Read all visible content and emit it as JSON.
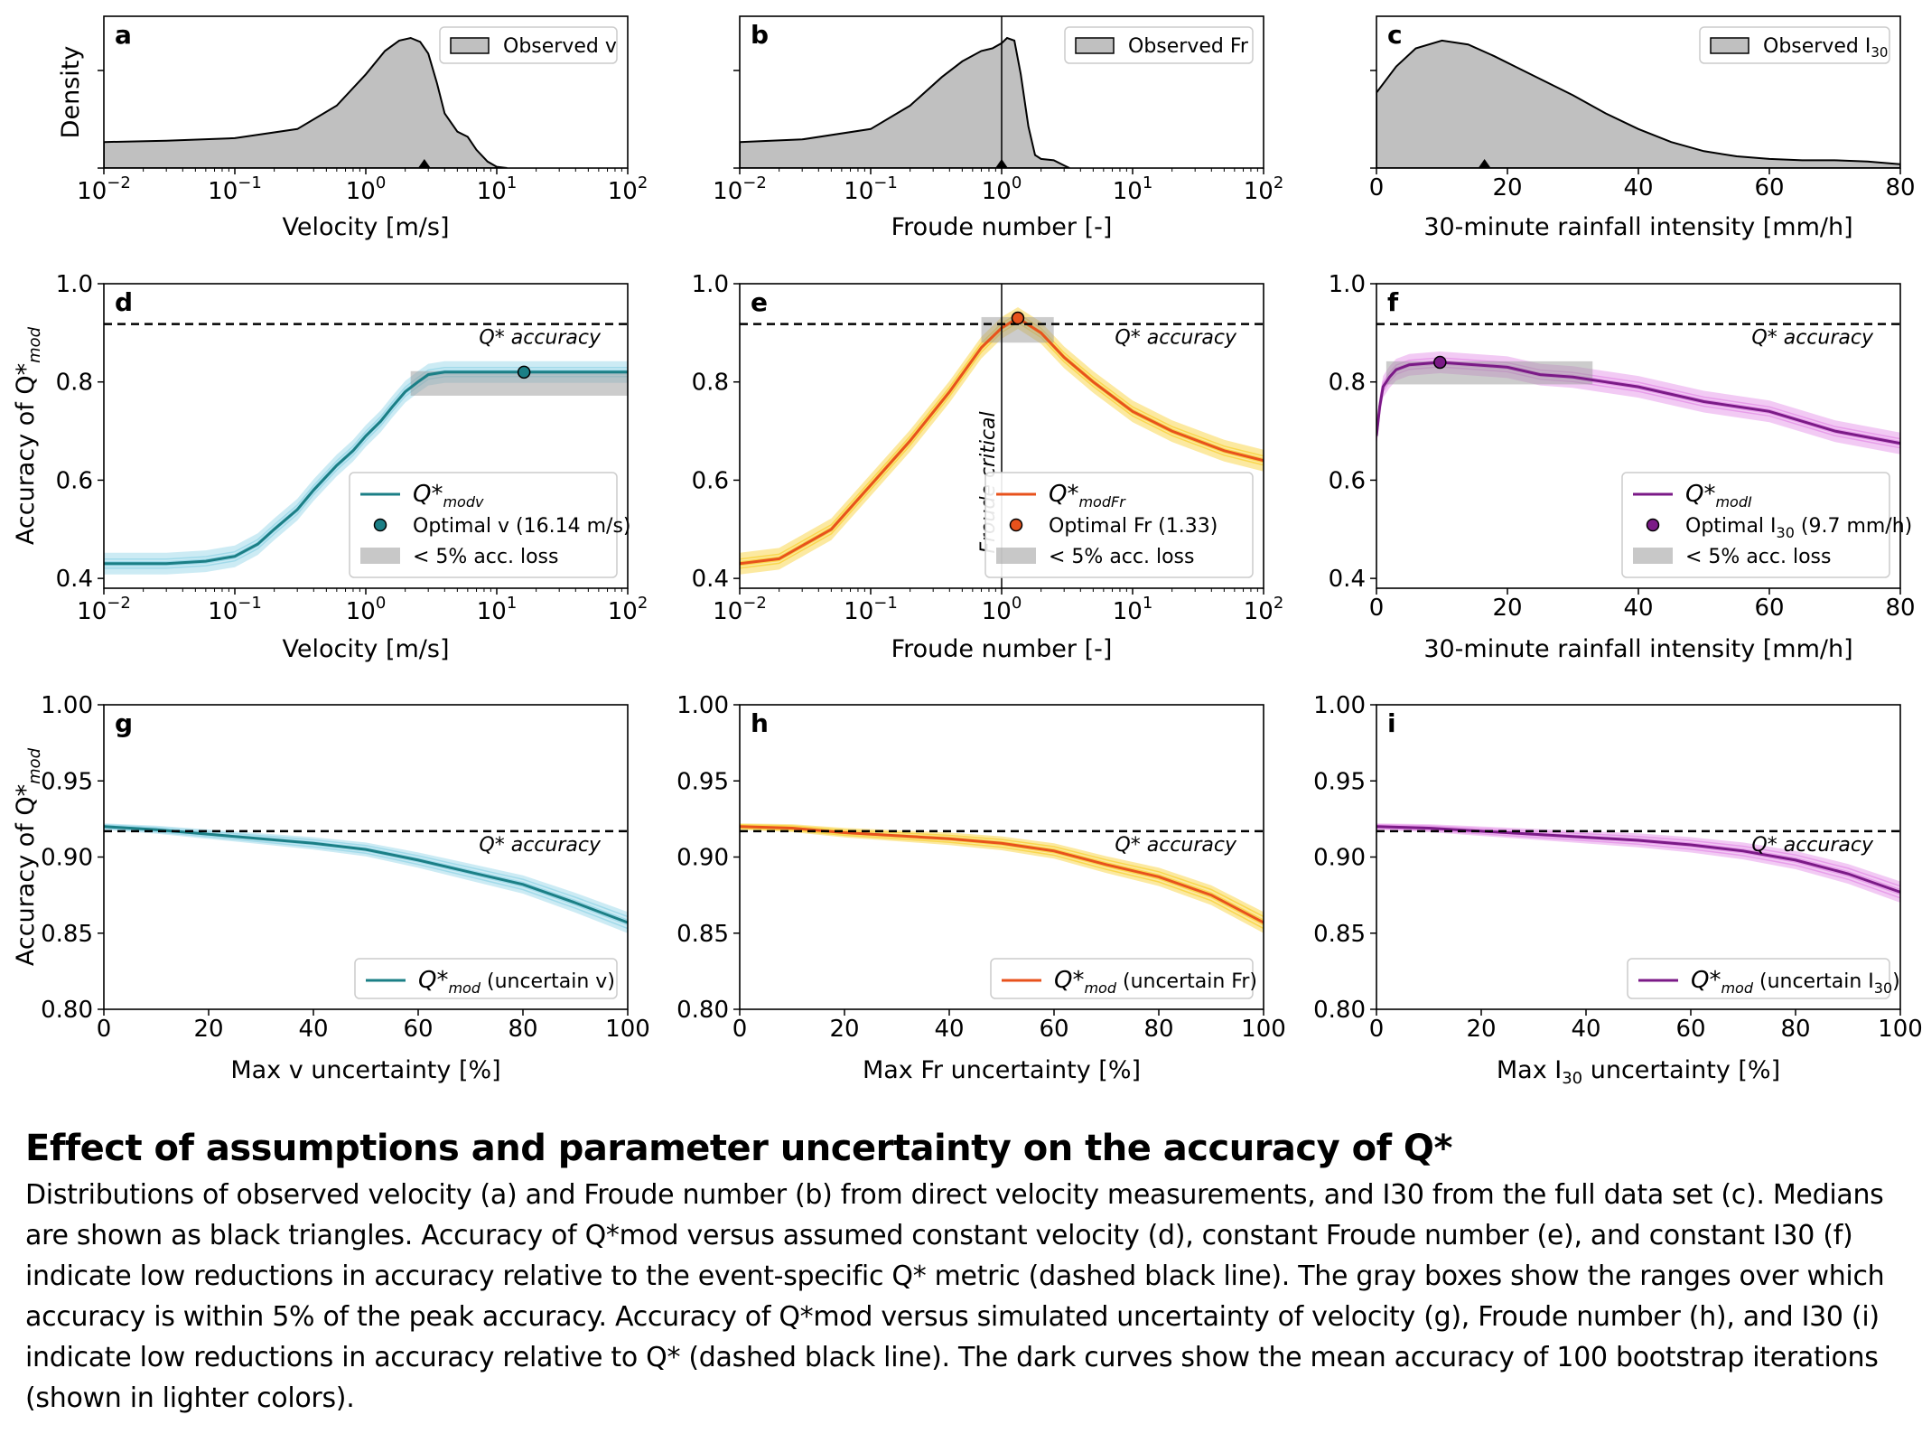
{
  "caption": {
    "title": "Effect of assumptions and parameter uncertainty on the accuracy of Q*",
    "body": "Distributions of observed velocity (a) and Froude number (b) from direct velocity measurements, and I30 from the full data set (c). Medians are shown as black triangles. Accuracy of Q*mod versus assumed constant velocity (d), constant Froude number (e), and constant I30 (f) indicate low reductions in accuracy relative to the event-specific Q* metric (dashed black line). The gray boxes show the ranges over which accuracy is within 5% of the peak accuracy. Accuracy of Q*mod versus simulated uncertainty of velocity (g), Froude number (h), and I30 (i) indicate low reductions in accuracy relative to Q* (dashed black line). The dark curves show the mean accuracy of 100 bootstrap iterations (shown in lighter colors)."
  },
  "colors": {
    "teal": "#1b7f86",
    "teal_light": "#8ed3e6",
    "orange": "#e8521c",
    "orange_light": "#f8cf2c",
    "purple": "#7b1a87",
    "purple_light": "#e38ae6",
    "density_fill": "#c0c0c0",
    "box_fill": "#9a9a9a"
  },
  "chart_data": [
    {
      "panel": "a",
      "type": "area",
      "xscale": "log",
      "xlim": [
        0.01,
        100
      ],
      "xticks": [
        {
          "v": 0.01,
          "b": "10",
          "e": "−2"
        },
        {
          "v": 0.1,
          "b": "10",
          "e": "−1"
        },
        {
          "v": 1,
          "b": "10",
          "e": "0"
        },
        {
          "v": 10,
          "b": "10",
          "e": "1"
        },
        {
          "v": 100,
          "b": "10",
          "e": "2"
        }
      ],
      "xlabel": "Velocity [m/s]",
      "ylabel": "Density",
      "legend": "Observed v",
      "median": 2.8,
      "x": [
        0.01,
        0.03,
        0.1,
        0.3,
        0.6,
        1.0,
        1.4,
        1.8,
        2.2,
        2.6,
        3.0,
        3.5,
        4.0,
        5.0,
        6.0,
        7.0,
        8.5,
        10.0,
        12.0
      ],
      "y": [
        0.2,
        0.21,
        0.23,
        0.3,
        0.48,
        0.72,
        0.9,
        0.98,
        1.0,
        0.97,
        0.88,
        0.65,
        0.42,
        0.28,
        0.24,
        0.14,
        0.05,
        0.01,
        0.0
      ]
    },
    {
      "panel": "b",
      "type": "area",
      "xscale": "log",
      "xlim": [
        0.01,
        100
      ],
      "xticks": [
        {
          "v": 0.01,
          "b": "10",
          "e": "−2"
        },
        {
          "v": 0.1,
          "b": "10",
          "e": "−1"
        },
        {
          "v": 1,
          "b": "10",
          "e": "0"
        },
        {
          "v": 10,
          "b": "10",
          "e": "1"
        },
        {
          "v": 100,
          "b": "10",
          "e": "2"
        }
      ],
      "xlabel": "Froude number [-]",
      "ylabel": "",
      "legend": "Observed Fr",
      "median": 1.0,
      "vline": 1.0,
      "x": [
        0.01,
        0.03,
        0.1,
        0.2,
        0.35,
        0.5,
        0.7,
        0.85,
        1.0,
        1.1,
        1.25,
        1.4,
        1.6,
        1.8,
        2.0,
        2.5,
        3.0,
        3.3
      ],
      "y": [
        0.2,
        0.22,
        0.3,
        0.48,
        0.7,
        0.82,
        0.9,
        0.92,
        0.96,
        1.0,
        0.98,
        0.72,
        0.32,
        0.1,
        0.07,
        0.06,
        0.02,
        0.0
      ]
    },
    {
      "panel": "c",
      "type": "area",
      "xscale": "linear",
      "xlim": [
        0,
        80
      ],
      "xticks": [
        {
          "v": 0,
          "t": "0"
        },
        {
          "v": 20,
          "t": "20"
        },
        {
          "v": 40,
          "t": "40"
        },
        {
          "v": 60,
          "t": "60"
        },
        {
          "v": 80,
          "t": "80"
        }
      ],
      "xlabel": "30-minute rainfall intensity [mm/h]",
      "ylabel": "",
      "legend": "Observed I",
      "legend_sub": "30",
      "median": 16.5,
      "x": [
        0,
        3,
        6,
        10,
        14,
        18,
        22,
        26,
        30,
        35,
        40,
        45,
        50,
        55,
        60,
        65,
        70,
        75,
        80
      ],
      "y": [
        0.58,
        0.78,
        0.92,
        0.98,
        0.95,
        0.86,
        0.76,
        0.66,
        0.56,
        0.42,
        0.3,
        0.2,
        0.13,
        0.09,
        0.07,
        0.06,
        0.06,
        0.05,
        0.03
      ]
    },
    {
      "panel": "d",
      "type": "line",
      "xscale": "log",
      "xlim": [
        0.01,
        100
      ],
      "ylim": [
        0.38,
        1.0
      ],
      "yticks": [
        0.4,
        0.6,
        0.8,
        1.0
      ],
      "ytick_labels": [
        "0.4",
        "0.6",
        "0.8",
        "1.0"
      ],
      "xticks": [
        {
          "v": 0.01,
          "b": "10",
          "e": "−2"
        },
        {
          "v": 0.1,
          "b": "10",
          "e": "−1"
        },
        {
          "v": 1,
          "b": "10",
          "e": "0"
        },
        {
          "v": 10,
          "b": "10",
          "e": "1"
        },
        {
          "v": 100,
          "b": "10",
          "e": "2"
        }
      ],
      "xlabel": "Velocity [m/s]",
      "ylabel_main": "Accuracy of Q*",
      "ylabel_sub": "mod",
      "ref_line": 0.918,
      "ref_label": "Q* accuracy",
      "box": {
        "x0": 2.2,
        "x1": 100,
        "y0": 0.772,
        "y1": 0.822
      },
      "optimal": {
        "x": 16.14,
        "y": 0.82
      },
      "legend": [
        {
          "main": "Q*",
          "sub": "modv",
          "after": ""
        },
        {
          "text": "Optimal v (16.14 m/s)"
        },
        {
          "text": "< 5% acc. loss"
        }
      ],
      "x": [
        0.01,
        0.03,
        0.06,
        0.1,
        0.15,
        0.2,
        0.3,
        0.4,
        0.6,
        0.8,
        1.0,
        1.3,
        1.6,
        2.0,
        2.5,
        3.0,
        4.0,
        6.0,
        10,
        16.14,
        30,
        100
      ],
      "y": [
        0.43,
        0.43,
        0.435,
        0.445,
        0.47,
        0.5,
        0.54,
        0.58,
        0.63,
        0.66,
        0.69,
        0.72,
        0.75,
        0.78,
        0.8,
        0.815,
        0.82,
        0.82,
        0.82,
        0.82,
        0.82,
        0.82
      ]
    },
    {
      "panel": "e",
      "type": "line",
      "xscale": "log",
      "xlim": [
        0.01,
        100
      ],
      "ylim": [
        0.38,
        1.0
      ],
      "yticks": [
        0.4,
        0.6,
        0.8,
        1.0
      ],
      "ytick_labels": [
        "0.4",
        "0.6",
        "0.8",
        "1.0"
      ],
      "xticks": [
        {
          "v": 0.01,
          "b": "10",
          "e": "−2"
        },
        {
          "v": 0.1,
          "b": "10",
          "e": "−1"
        },
        {
          "v": 1,
          "b": "10",
          "e": "0"
        },
        {
          "v": 10,
          "b": "10",
          "e": "1"
        },
        {
          "v": 100,
          "b": "10",
          "e": "2"
        }
      ],
      "xlabel": "Froude number [-]",
      "ylabel_main": "",
      "ylabel_sub": "",
      "ref_line": 0.918,
      "ref_label": "Q* accuracy",
      "vline": 1.0,
      "vline_label": "Froude critical",
      "box": {
        "x0": 0.7,
        "x1": 2.5,
        "y0": 0.88,
        "y1": 0.932
      },
      "optimal": {
        "x": 1.33,
        "y": 0.93
      },
      "legend": [
        {
          "main": "Q*",
          "sub": "modFr",
          "after": ""
        },
        {
          "text": "Optimal Fr (1.33)"
        },
        {
          "text": "< 5% acc. loss"
        }
      ],
      "x": [
        0.01,
        0.02,
        0.05,
        0.1,
        0.2,
        0.4,
        0.7,
        1.0,
        1.33,
        2.0,
        3.0,
        5.0,
        10,
        20,
        50,
        100
      ],
      "y": [
        0.43,
        0.44,
        0.5,
        0.59,
        0.68,
        0.78,
        0.87,
        0.91,
        0.93,
        0.9,
        0.85,
        0.8,
        0.74,
        0.7,
        0.66,
        0.64
      ]
    },
    {
      "panel": "f",
      "type": "line",
      "xscale": "linear",
      "xlim": [
        0,
        80
      ],
      "ylim": [
        0.38,
        1.0
      ],
      "yticks": [
        0.4,
        0.6,
        0.8,
        1.0
      ],
      "ytick_labels": [
        "0.4",
        "0.6",
        "0.8",
        "1.0"
      ],
      "xticks": [
        {
          "v": 0,
          "t": "0"
        },
        {
          "v": 20,
          "t": "20"
        },
        {
          "v": 40,
          "t": "40"
        },
        {
          "v": 60,
          "t": "60"
        },
        {
          "v": 80,
          "t": "80"
        }
      ],
      "xlabel": "30-minute rainfall intensity [mm/h]",
      "ylabel_main": "",
      "ylabel_sub": "",
      "ref_line": 0.918,
      "ref_label": "Q* accuracy",
      "box": {
        "x0": 1.5,
        "x1": 33,
        "y0": 0.795,
        "y1": 0.842
      },
      "optimal": {
        "x": 9.7,
        "y": 0.84
      },
      "legend": [
        {
          "main": "Q*",
          "sub": "modI",
          "after": ""
        },
        {
          "text": "Optimal I",
          "sub": "30",
          "after": " (9.7 mm/h)"
        },
        {
          "text": "< 5% acc. loss"
        }
      ],
      "x": [
        0,
        0.5,
        1,
        2,
        3,
        5,
        9.7,
        15,
        20,
        25,
        30,
        35,
        40,
        50,
        60,
        70,
        80
      ],
      "y": [
        0.69,
        0.75,
        0.79,
        0.81,
        0.825,
        0.835,
        0.84,
        0.835,
        0.83,
        0.815,
        0.81,
        0.8,
        0.79,
        0.76,
        0.74,
        0.7,
        0.675
      ]
    },
    {
      "panel": "g",
      "type": "line",
      "xscale": "linear",
      "xlim": [
        0,
        100
      ],
      "ylim": [
        0.8,
        1.0
      ],
      "yticks": [
        0.8,
        0.85,
        0.9,
        0.95,
        1.0
      ],
      "ytick_labels": [
        "0.80",
        "0.85",
        "0.90",
        "0.95",
        "1.00"
      ],
      "xticks": [
        {
          "v": 0,
          "t": "0"
        },
        {
          "v": 20,
          "t": "20"
        },
        {
          "v": 40,
          "t": "40"
        },
        {
          "v": 60,
          "t": "60"
        },
        {
          "v": 80,
          "t": "80"
        },
        {
          "v": 100,
          "t": "100"
        }
      ],
      "xlabel": "Max v uncertainty [%]",
      "ylabel_main": "Accuracy of Q*",
      "ylabel_sub": "mod",
      "ref_line": 0.917,
      "ref_label": "Q* accuracy",
      "legend": [
        {
          "main": "Q*",
          "sub": "mod",
          "after": " (uncertain v)"
        }
      ],
      "x": [
        0,
        10,
        20,
        30,
        40,
        50,
        60,
        70,
        80,
        90,
        100
      ],
      "y": [
        0.92,
        0.918,
        0.915,
        0.912,
        0.909,
        0.905,
        0.898,
        0.89,
        0.882,
        0.87,
        0.857
      ]
    },
    {
      "panel": "h",
      "type": "line",
      "xscale": "linear",
      "xlim": [
        0,
        100
      ],
      "ylim": [
        0.8,
        1.0
      ],
      "yticks": [
        0.8,
        0.85,
        0.9,
        0.95,
        1.0
      ],
      "ytick_labels": [
        "0.80",
        "0.85",
        "0.90",
        "0.95",
        "1.00"
      ],
      "xticks": [
        {
          "v": 0,
          "t": "0"
        },
        {
          "v": 20,
          "t": "20"
        },
        {
          "v": 40,
          "t": "40"
        },
        {
          "v": 60,
          "t": "60"
        },
        {
          "v": 80,
          "t": "80"
        },
        {
          "v": 100,
          "t": "100"
        }
      ],
      "xlabel": "Max Fr uncertainty [%]",
      "ylabel_main": "",
      "ylabel_sub": "",
      "ref_line": 0.917,
      "ref_label": "Q* accuracy",
      "legend": [
        {
          "main": "Q*",
          "sub": "mod",
          "after": " (uncertain Fr)"
        }
      ],
      "x": [
        0,
        10,
        20,
        30,
        40,
        50,
        60,
        70,
        80,
        90,
        100
      ],
      "y": [
        0.92,
        0.919,
        0.916,
        0.914,
        0.912,
        0.909,
        0.904,
        0.895,
        0.887,
        0.875,
        0.857
      ]
    },
    {
      "panel": "i",
      "type": "line",
      "xscale": "linear",
      "xlim": [
        0,
        100
      ],
      "ylim": [
        0.8,
        1.0
      ],
      "yticks": [
        0.8,
        0.85,
        0.9,
        0.95,
        1.0
      ],
      "ytick_labels": [
        "0.80",
        "0.85",
        "0.90",
        "0.95",
        "1.00"
      ],
      "xticks": [
        {
          "v": 0,
          "t": "0"
        },
        {
          "v": 20,
          "t": "20"
        },
        {
          "v": 40,
          "t": "40"
        },
        {
          "v": 60,
          "t": "60"
        },
        {
          "v": 80,
          "t": "80"
        },
        {
          "v": 100,
          "t": "100"
        }
      ],
      "xlabel": "Max I",
      "xlabel_sub": "30",
      "xlabel_after": " uncertainty [%]",
      "ylabel_main": "",
      "ylabel_sub": "",
      "ref_line": 0.917,
      "ref_label": "Q* accuracy",
      "legend": [
        {
          "main": "Q*",
          "sub": "mod",
          "after": " (uncertain I",
          "sub2": "30",
          "after2": ")"
        }
      ],
      "x": [
        0,
        10,
        20,
        30,
        40,
        50,
        60,
        70,
        80,
        90,
        100
      ],
      "y": [
        0.92,
        0.919,
        0.917,
        0.915,
        0.913,
        0.911,
        0.908,
        0.904,
        0.898,
        0.889,
        0.877
      ]
    }
  ]
}
